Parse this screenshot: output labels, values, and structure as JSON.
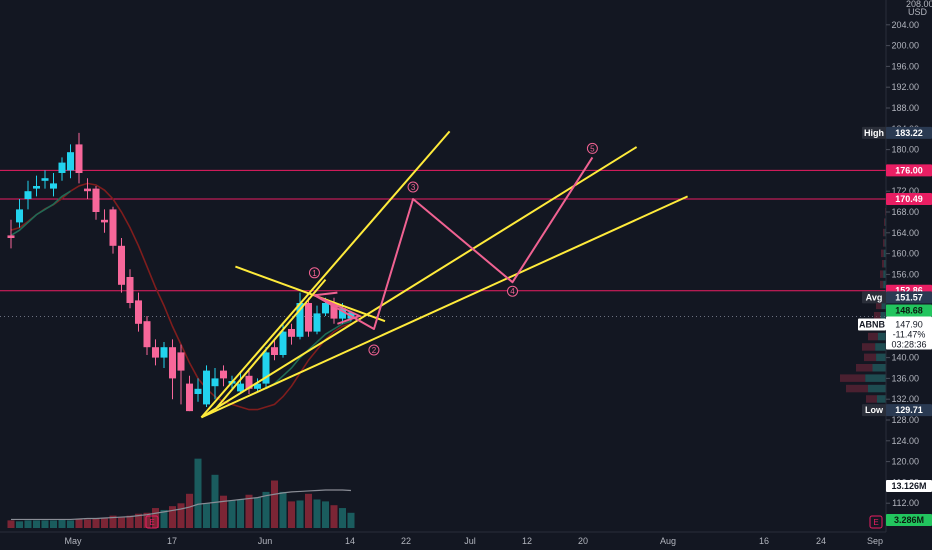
{
  "chart_data": {
    "type": "candlestick",
    "symbol": "ABNB",
    "currency": "USD",
    "y_ticks": [
      204,
      200,
      196,
      192,
      188,
      184,
      180,
      176,
      172,
      168,
      164,
      160,
      156,
      152,
      148,
      144,
      140,
      136,
      132,
      128,
      124,
      120,
      116,
      112
    ],
    "y_tick_labels": [
      "204.00",
      "200.00",
      "196.00",
      "192.00",
      "188.00",
      "184.00",
      "180.00",
      "176.00",
      "172.00",
      "168.00",
      "164.00",
      "160.00",
      "156.00",
      "152.00",
      "148.00",
      "144.00",
      "140.00",
      "136.00",
      "132.00",
      "128.00",
      "124.00",
      "120.00",
      "116.00",
      "112.00"
    ],
    "y_top_partial": "208.00",
    "x_labels": [
      "May",
      "17",
      "Jun",
      "14",
      "22",
      "Jul",
      "12",
      "20",
      "Aug",
      "16",
      "24",
      "Sep"
    ],
    "price_tags": {
      "high": {
        "label": "High",
        "value": "183.22",
        "price": 183.22
      },
      "resistance_1": {
        "value": "176.00",
        "price": 176.0
      },
      "resistance_2": {
        "value": "170.49",
        "price": 170.49
      },
      "resistance_3": {
        "value": "152.86",
        "price": 152.86
      },
      "avg": {
        "label": "Avg",
        "value": "151.57",
        "price": 151.57
      },
      "last": {
        "value": "148.68",
        "price": 148.68
      },
      "current": {
        "symbol": "ABNB",
        "value": "147.90",
        "change": "-11.47%",
        "countdown": "03:28:36",
        "price": 147.9
      },
      "low": {
        "label": "Low",
        "value": "129.71",
        "price": 129.71
      },
      "volume_ma": {
        "value": "13.126M"
      },
      "volume": {
        "value": "3.286M"
      }
    },
    "candles": [
      {
        "o": 163.5,
        "c": 163.0,
        "h": 166.5,
        "l": 161.0
      },
      {
        "o": 166.0,
        "c": 168.5,
        "h": 170.5,
        "l": 165.0
      },
      {
        "o": 170.5,
        "c": 172.0,
        "h": 174.0,
        "l": 168.5
      },
      {
        "o": 172.5,
        "c": 173.0,
        "h": 175.0,
        "l": 171.0
      },
      {
        "o": 174.0,
        "c": 174.5,
        "h": 176.0,
        "l": 172.5
      },
      {
        "o": 172.5,
        "c": 173.5,
        "h": 175.5,
        "l": 171.0
      },
      {
        "o": 175.5,
        "c": 177.5,
        "h": 178.5,
        "l": 174.0
      },
      {
        "o": 176.0,
        "c": 179.5,
        "h": 181.0,
        "l": 174.5
      },
      {
        "o": 181.0,
        "c": 175.5,
        "h": 183.22,
        "l": 173.5
      },
      {
        "o": 172.5,
        "c": 172.0,
        "h": 174.5,
        "l": 170.5
      },
      {
        "o": 172.5,
        "c": 168.0,
        "h": 173.0,
        "l": 166.5
      },
      {
        "o": 166.5,
        "c": 166.0,
        "h": 168.5,
        "l": 164.0
      },
      {
        "o": 168.5,
        "c": 161.5,
        "h": 169.0,
        "l": 160.0
      },
      {
        "o": 161.5,
        "c": 154.0,
        "h": 163.0,
        "l": 152.5
      },
      {
        "o": 155.5,
        "c": 150.5,
        "h": 157.0,
        "l": 149.5
      },
      {
        "o": 151.0,
        "c": 146.5,
        "h": 152.5,
        "l": 145.0
      },
      {
        "o": 147.0,
        "c": 142.0,
        "h": 148.0,
        "l": 140.5
      },
      {
        "o": 142.0,
        "c": 140.0,
        "h": 143.5,
        "l": 138.5
      },
      {
        "o": 140.0,
        "c": 142.0,
        "h": 143.0,
        "l": 138.0
      },
      {
        "o": 142.0,
        "c": 136.0,
        "h": 143.5,
        "l": 132.0
      },
      {
        "o": 141.0,
        "c": 137.5,
        "h": 142.5,
        "l": 131.0
      },
      {
        "o": 135.0,
        "c": 129.71,
        "h": 136.5,
        "l": 129.71
      },
      {
        "o": 133.0,
        "c": 134.0,
        "h": 136.0,
        "l": 131.5
      },
      {
        "o": 131.0,
        "c": 137.5,
        "h": 138.5,
        "l": 130.5
      },
      {
        "o": 134.5,
        "c": 136.0,
        "h": 138.0,
        "l": 132.0
      },
      {
        "o": 137.5,
        "c": 136.0,
        "h": 138.5,
        "l": 134.5
      },
      {
        "o": 135.0,
        "c": 135.5,
        "h": 136.5,
        "l": 134.0
      },
      {
        "o": 133.5,
        "c": 135.0,
        "h": 137.0,
        "l": 133.0
      },
      {
        "o": 136.5,
        "c": 134.0,
        "h": 138.0,
        "l": 133.0
      },
      {
        "o": 134.0,
        "c": 135.0,
        "h": 136.0,
        "l": 133.5
      },
      {
        "o": 135.0,
        "c": 141.0,
        "h": 142.0,
        "l": 134.0
      },
      {
        "o": 142.0,
        "c": 140.5,
        "h": 143.5,
        "l": 139.5
      },
      {
        "o": 140.5,
        "c": 145.0,
        "h": 146.5,
        "l": 140.0
      },
      {
        "o": 145.5,
        "c": 144.0,
        "h": 146.5,
        "l": 142.5
      },
      {
        "o": 144.0,
        "c": 150.5,
        "h": 152.5,
        "l": 143.5
      },
      {
        "o": 150.5,
        "c": 145.0,
        "h": 151.5,
        "l": 144.0
      },
      {
        "o": 145.0,
        "c": 148.5,
        "h": 150.0,
        "l": 144.5
      },
      {
        "o": 148.5,
        "c": 150.5,
        "h": 151.5,
        "l": 148.0
      },
      {
        "o": 150.5,
        "c": 147.5,
        "h": 151.5,
        "l": 146.5
      },
      {
        "o": 147.5,
        "c": 149.5,
        "h": 150.5,
        "l": 146.5
      },
      {
        "o": 147.5,
        "c": 148.68,
        "h": 149.0,
        "l": 147.0
      }
    ],
    "volumes": [
      0.8,
      0.7,
      0.8,
      0.8,
      0.8,
      0.8,
      0.9,
      0.8,
      0.9,
      0.9,
      1.0,
      1.0,
      1.3,
      1.1,
      1.3,
      1.5,
      1.6,
      2.1,
      1.9,
      2.3,
      2.6,
      3.6,
      7.3,
      2.6,
      5.6,
      3.4,
      2.9,
      3.0,
      3.5,
      3.2,
      3.8,
      5.0,
      3.8,
      2.8,
      2.9,
      3.6,
      3.0,
      2.8,
      2.4,
      2.1,
      1.6
    ],
    "volume_ma": [
      0.9,
      0.9,
      0.9,
      0.9,
      0.9,
      0.9,
      0.9,
      0.9,
      0.95,
      1.0,
      1.0,
      1.05,
      1.1,
      1.15,
      1.2,
      1.3,
      1.4,
      1.55,
      1.7,
      1.85,
      2.0,
      2.2,
      2.5,
      2.6,
      2.7,
      2.8,
      2.9,
      3.0,
      3.1,
      3.2,
      3.4,
      3.55,
      3.7,
      3.8,
      3.85,
      3.9,
      3.95,
      4.0,
      4.0,
      4.0,
      3.95
    ],
    "ema": [
      164.5,
      165.0,
      166.2,
      167.5,
      168.6,
      169.4,
      170.6,
      172.0,
      173.0,
      173.5,
      173.2,
      172.2,
      170.5,
      168.0,
      165.0,
      161.5,
      157.5,
      153.5,
      150.0,
      146.0,
      142.5,
      139.0,
      136.0,
      134.0,
      132.5,
      131.5,
      131.0,
      130.5,
      130.0,
      130.0,
      130.5,
      131.0,
      132.5,
      134.5,
      137.0,
      139.5,
      141.5,
      143.5,
      145.0,
      146.0,
      146.5
    ],
    "sma": [
      163.5,
      164.5,
      166.0,
      167.5,
      168.5,
      169.5,
      171.0,
      172.0,
      null,
      null,
      null,
      null,
      null,
      null,
      null,
      null,
      null,
      null,
      null,
      null,
      null,
      null,
      null,
      null,
      null,
      null,
      null,
      null,
      null,
      null,
      134.0,
      135.0,
      136.5,
      138.0,
      140.0,
      141.5,
      143.0,
      144.5,
      145.5,
      146.5,
      147.0
    ],
    "elliott_wave": [
      {
        "label": "1",
        "day": 35.7,
        "price": 154.0
      },
      {
        "label": "2",
        "day": 42.7,
        "price": 143.0
      },
      {
        "label": "3",
        "day": 47.3,
        "price": 170.5
      },
      {
        "label": "4",
        "day": 59.0,
        "price": 154.5
      },
      {
        "label": "5",
        "day": 68.4,
        "price": 178.5
      }
    ],
    "wave_start": {
      "day": 38.4,
      "price": 152.5
    },
    "wave_path": [
      {
        "day": 38.4,
        "price": 152.5
      },
      {
        "day": 35.7,
        "price": 152.0
      },
      {
        "day": 42.7,
        "price": 145.5
      },
      {
        "day": 47.3,
        "price": 170.5
      },
      {
        "day": 59.0,
        "price": 154.5
      },
      {
        "day": 68.4,
        "price": 178.5
      }
    ],
    "wave_triangle": [
      {
        "day": 35.7,
        "price": 152.0
      },
      {
        "day": 41.0,
        "price": 148.0
      },
      {
        "day": 38.4,
        "price": 146.5
      }
    ],
    "trendlines": [
      {
        "from": {
          "day": 22.4,
          "price": 128.5
        },
        "to": {
          "day": 51.6,
          "price": 183.5
        }
      },
      {
        "from": {
          "day": 22.4,
          "price": 128.5
        },
        "to": {
          "day": 73.6,
          "price": 180.5
        }
      },
      {
        "from": {
          "day": 22.4,
          "price": 128.5
        },
        "to": {
          "day": 79.6,
          "price": 171.0
        }
      },
      {
        "from": {
          "day": 26.4,
          "price": 157.5
        },
        "to": {
          "day": 44.0,
          "price": 147.0
        }
      },
      {
        "from": {
          "day": 24.0,
          "price": 130.0
        },
        "to": {
          "day": 37.0,
          "price": 155.0
        }
      }
    ],
    "colors": {
      "background": "#131722",
      "up": "#22d3ee",
      "down": "#f7679a",
      "trend": "#ffeb3b",
      "wave": "#f06292",
      "level": "#e91e63",
      "ema": "#7f1d1d",
      "sma": "#1f6b55",
      "volume_up": "#1a5c5e",
      "volume_down": "#7b2535"
    }
  }
}
